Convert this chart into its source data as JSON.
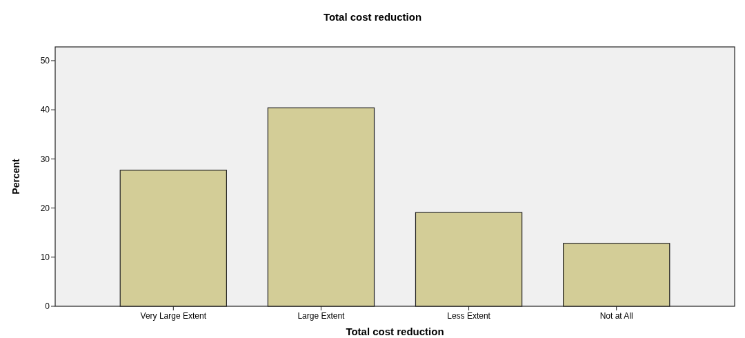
{
  "chart_data": {
    "type": "bar",
    "title": "Total cost reduction",
    "xlabel": "Total cost reduction",
    "ylabel": "Percent",
    "categories": [
      "Very Large Extent",
      "Large Extent",
      "Less Extent",
      "Not at All"
    ],
    "series": [
      {
        "color": "#d3cd97",
        "values": [
          27.7,
          40.4,
          19.1,
          12.8
        ]
      }
    ],
    "ylim": [
      0,
      52.8
    ],
    "yticks": [
      0,
      10,
      20,
      30,
      40,
      50
    ],
    "grid": false
  }
}
